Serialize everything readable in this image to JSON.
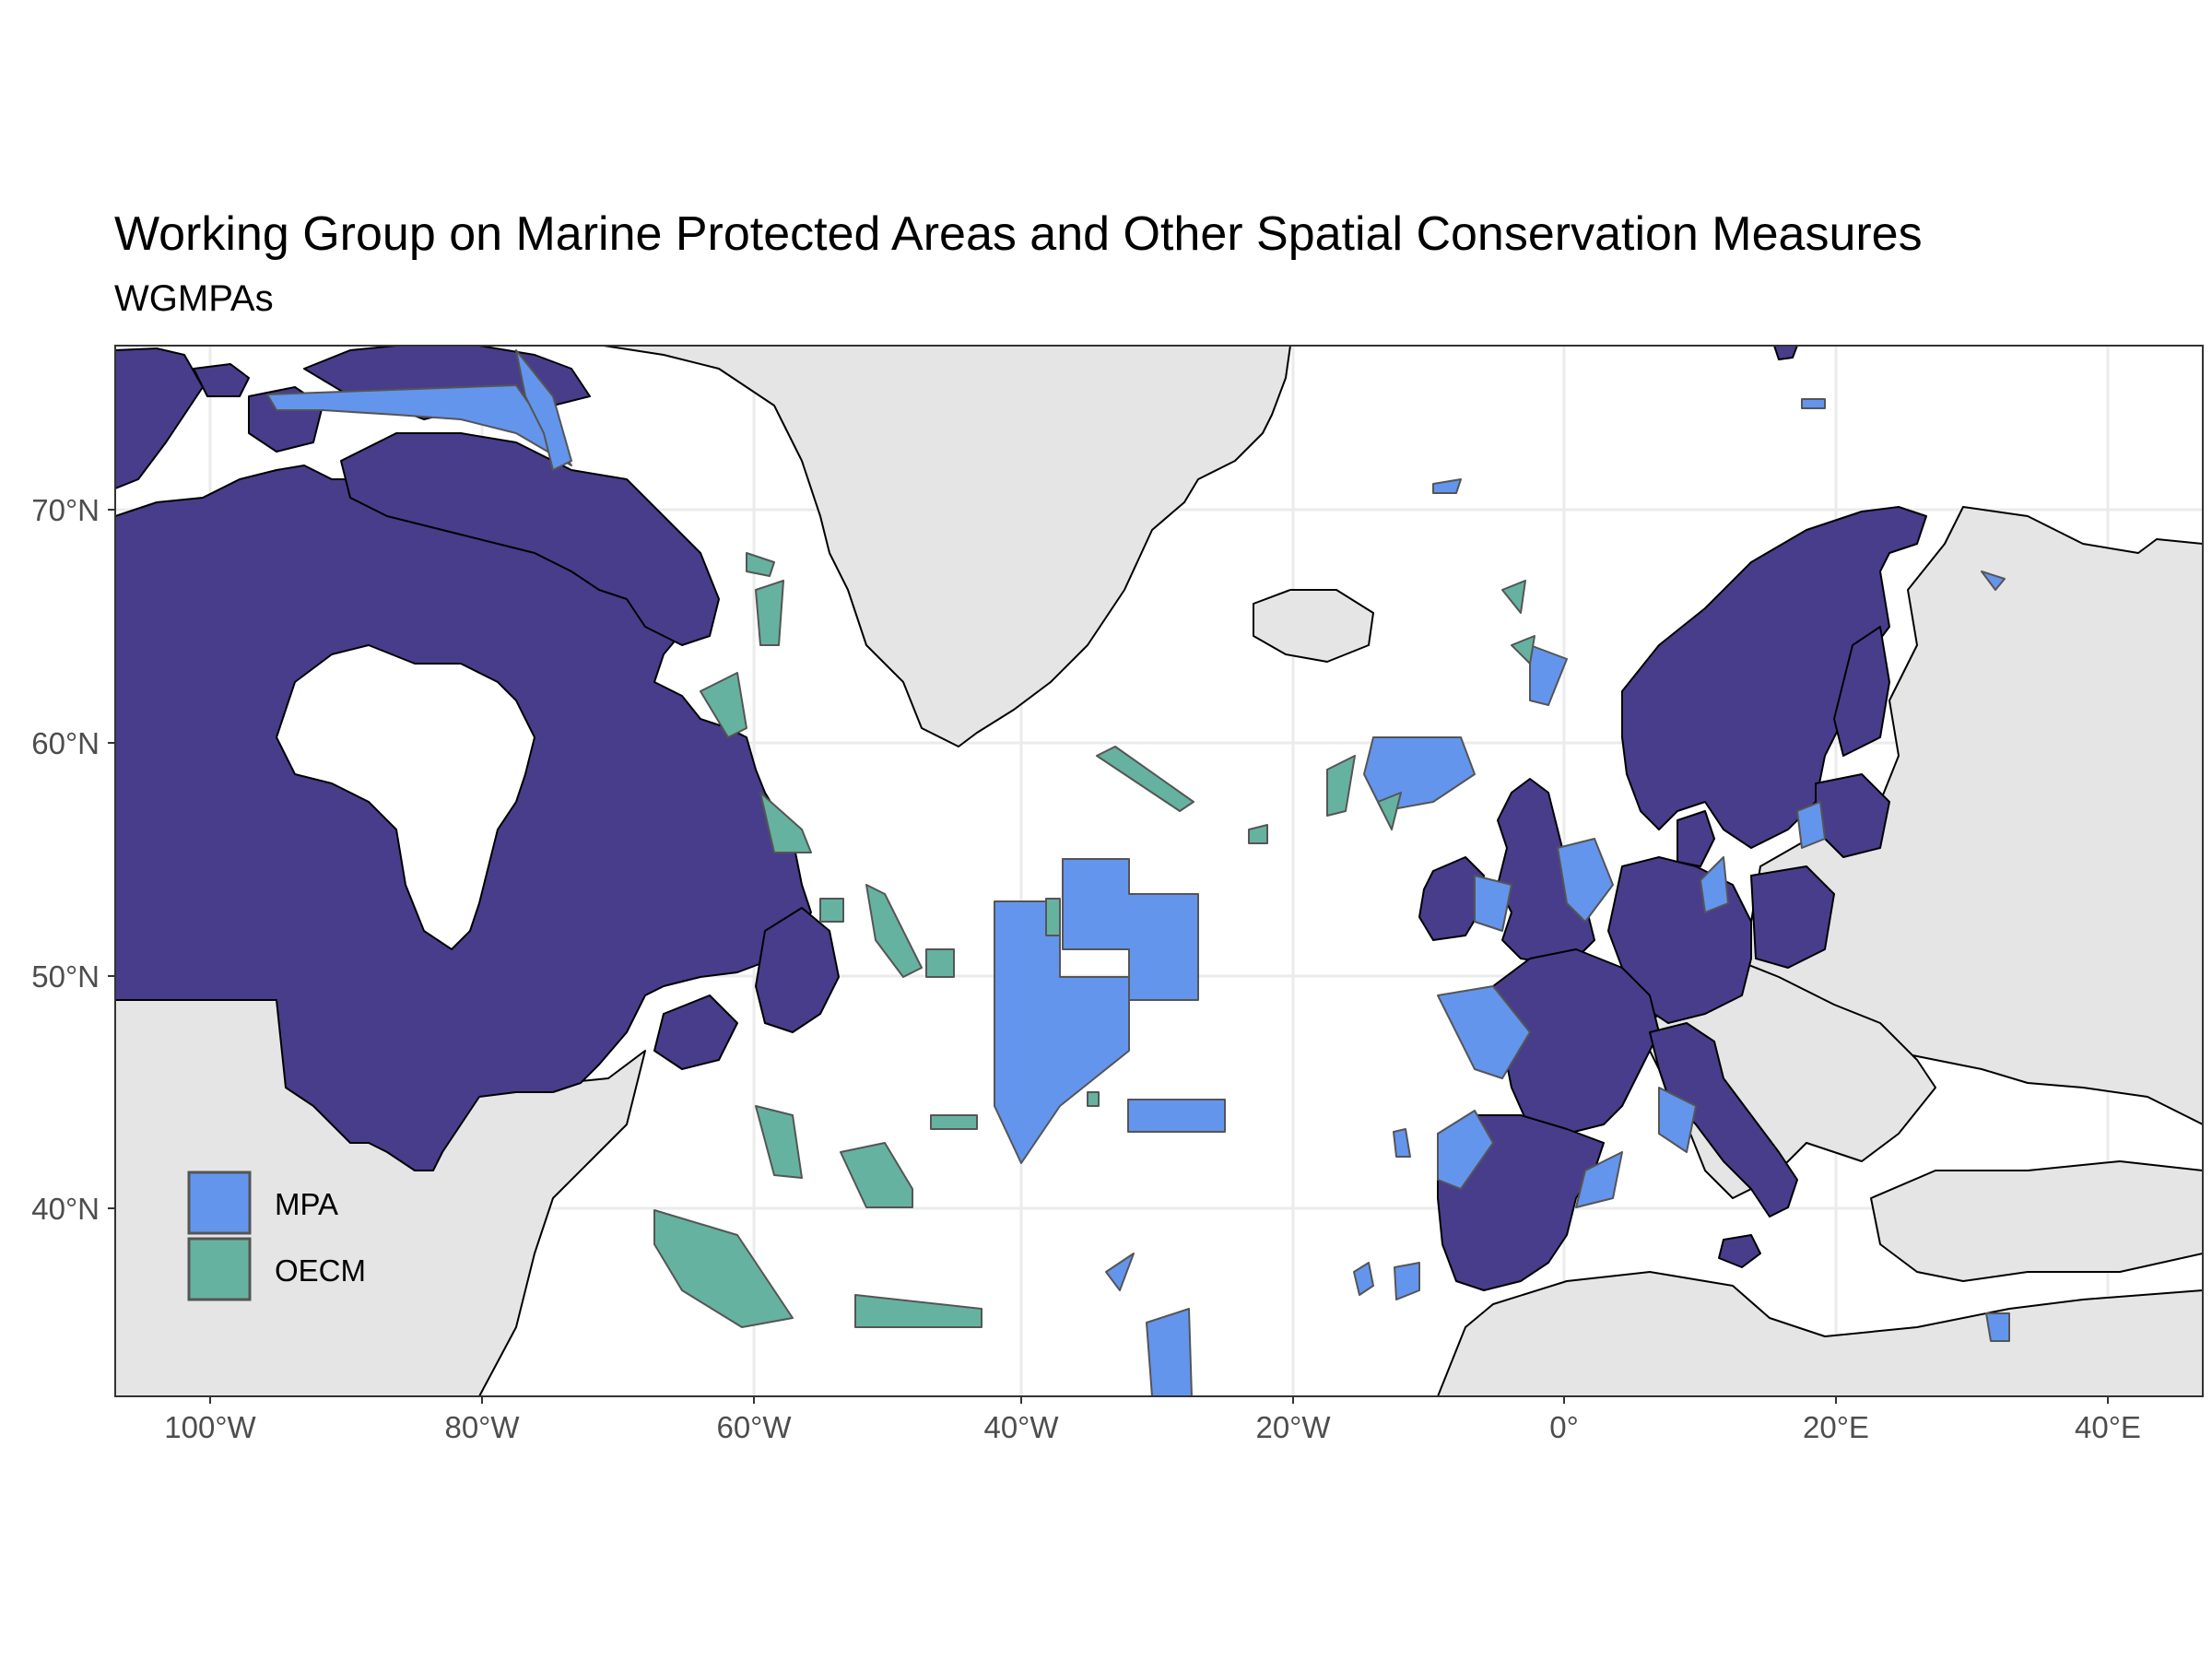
{
  "title": "Working Group on Marine Protected Areas and Other Spatial Conservation Measures",
  "subtitle": "WGMPAs",
  "axes": {
    "x_ticks": [
      "100°W",
      "80°W",
      "60°W",
      "40°W",
      "20°W",
      "0°",
      "20°E",
      "40°E"
    ],
    "y_ticks": [
      "70°N",
      "60°N",
      "50°N",
      "40°N"
    ]
  },
  "legend": {
    "items": [
      {
        "label": "MPA",
        "color": "#6495ED"
      },
      {
        "label": "OECM",
        "color": "#66B2A0"
      }
    ]
  },
  "colors": {
    "ices_land": "#483D8B",
    "other_land": "#E5E5E5",
    "mpa": "#6495ED",
    "oecm": "#66B2A0",
    "grid": "#EBEBEB",
    "panel_border": "#333333"
  }
}
